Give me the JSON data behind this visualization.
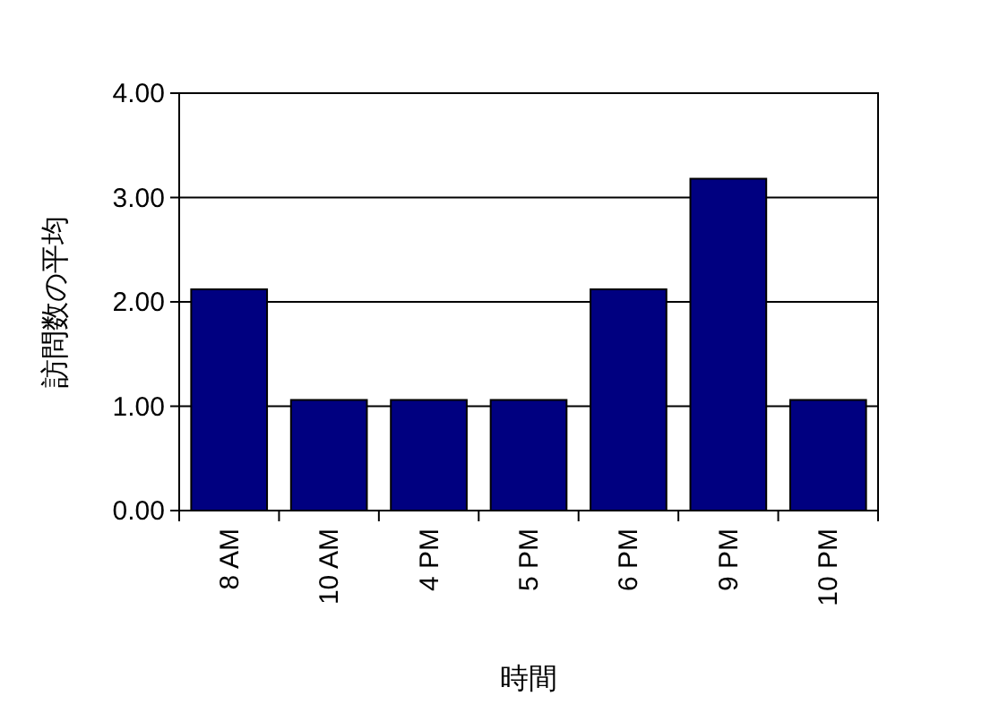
{
  "chart_data": {
    "type": "bar",
    "xlabel": "時間",
    "ylabel": "訪問数の平均",
    "categories": [
      "8 AM",
      "10 AM",
      "4 PM",
      "5 PM",
      "6 PM",
      "9 PM",
      "10 PM"
    ],
    "values": [
      2.12,
      1.06,
      1.06,
      1.06,
      2.12,
      3.18,
      1.06
    ],
    "color": "#000080",
    "ylim": [
      0,
      4
    ],
    "yticks": [
      {
        "value": 0,
        "label": "0.00"
      },
      {
        "value": 1,
        "label": "1.00"
      },
      {
        "value": 2,
        "label": "2.00"
      },
      {
        "value": 3,
        "label": "3.00"
      },
      {
        "value": 4,
        "label": "4.00"
      }
    ],
    "grid": "y",
    "legend": false
  }
}
